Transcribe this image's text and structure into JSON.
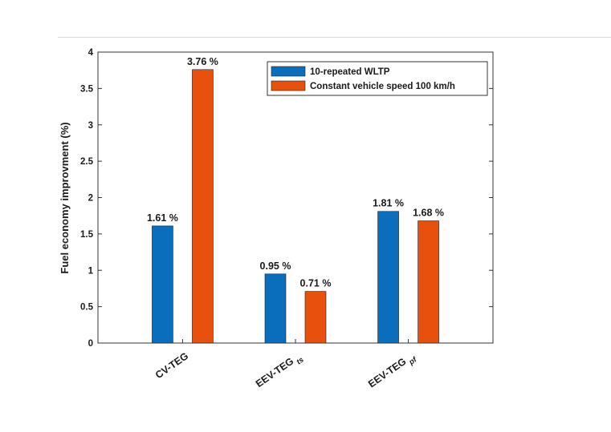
{
  "chart_data": {
    "type": "bar",
    "title": "",
    "xlabel": "",
    "ylabel": "Fuel economy improvment (%)",
    "ylim": [
      0,
      4
    ],
    "yticks": [
      "0",
      "0.5",
      "1",
      "1.5",
      "2",
      "2.5",
      "3",
      "3.5",
      "4"
    ],
    "grid": false,
    "legend_position": "top-right",
    "categories": [
      {
        "main": "CV-TEG",
        "sub": ""
      },
      {
        "main": "EEV-TEG",
        "sub": "ts"
      },
      {
        "main": "EEV-TEG",
        "sub": "pf"
      }
    ],
    "series": [
      {
        "name": "10-repeated WLTP",
        "color": "#0a6ebd",
        "values": [
          1.61,
          0.95,
          1.81
        ],
        "labels": [
          "1.61 %",
          "0.95 %",
          "1.81 %"
        ]
      },
      {
        "name": "Constant vehicle speed 100 km/h",
        "color": "#e8500e",
        "values": [
          3.76,
          0.71,
          1.68
        ],
        "labels": [
          "3.76 %",
          "0.71 %",
          "1.68 %"
        ]
      }
    ]
  }
}
